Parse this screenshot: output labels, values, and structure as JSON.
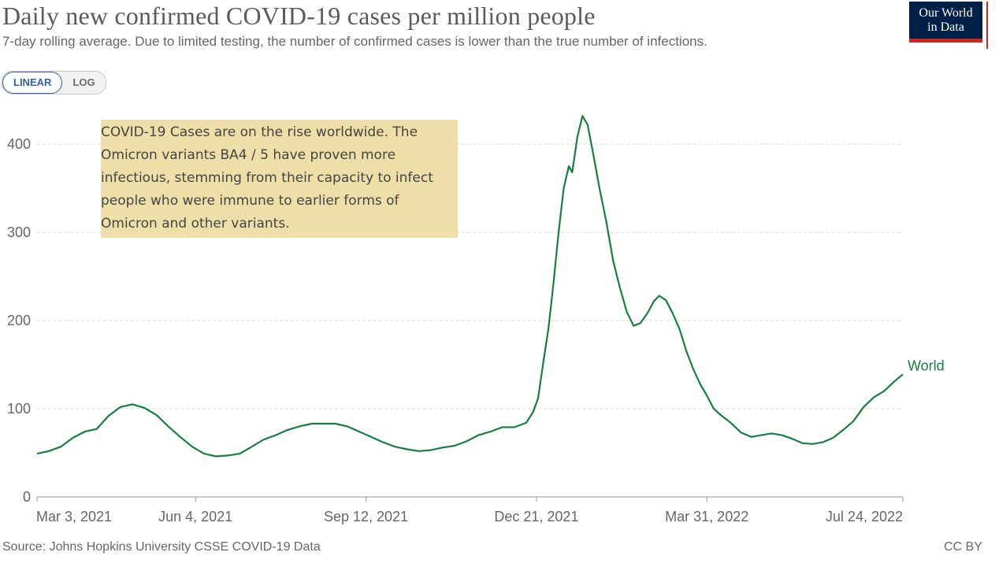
{
  "header": {
    "title": "Daily new confirmed COVID-19 cases per million people",
    "subtitle": "7-day rolling average. Due to limited testing, the number of confirmed cases is lower than the true number of infections.",
    "logo_line1": "Our World",
    "logo_line2": "in Data"
  },
  "toggle": {
    "linear_label": "LINEAR",
    "log_label": "LOG",
    "active": "LINEAR"
  },
  "annotation": {
    "text": "COVID-19 Cases are on the rise worldwide. The Omicron variants BA4 / 5 have proven more infectious, stemming from their capacity to infect people who were immune to earlier forms of Omicron and other variants."
  },
  "footer": {
    "source": "Source: Johns Hopkins University CSSE COVID-19 Data",
    "license": "CC BY"
  },
  "colors": {
    "line": "#15803d",
    "grid": "#d9d9d9",
    "axis": "#999999",
    "annotation_bg": "#eedfa8",
    "logo_bg": "#002147",
    "logo_accent": "#ce261e",
    "toggle_active": "#3360a9"
  },
  "chart_data": {
    "type": "line",
    "title": "Daily new confirmed COVID-19 cases per million people",
    "subtitle": "7-day rolling average. Due to limited testing, the number of confirmed cases is lower than the true number of infections.",
    "x_start": "2021-03-03",
    "x_end": "2022-07-24",
    "x_ticks": [
      {
        "date": "2021-03-03",
        "label": "Mar 3, 2021"
      },
      {
        "date": "2021-06-04",
        "label": "Jun 4, 2021"
      },
      {
        "date": "2021-09-12",
        "label": "Sep 12, 2021"
      },
      {
        "date": "2021-12-21",
        "label": "Dec 21, 2021"
      },
      {
        "date": "2022-03-31",
        "label": "Mar 31, 2022"
      },
      {
        "date": "2022-07-24",
        "label": "Jul 24, 2022"
      }
    ],
    "y_ticks": [
      0,
      100,
      200,
      300,
      400
    ],
    "ylim": [
      0,
      450
    ],
    "grid": true,
    "series": [
      {
        "name": "World",
        "points": [
          [
            "2021-03-03",
            49
          ],
          [
            "2021-03-10",
            52
          ],
          [
            "2021-03-17",
            57
          ],
          [
            "2021-03-24",
            67
          ],
          [
            "2021-03-31",
            74
          ],
          [
            "2021-04-07",
            77
          ],
          [
            "2021-04-14",
            92
          ],
          [
            "2021-04-21",
            102
          ],
          [
            "2021-04-28",
            105
          ],
          [
            "2021-05-05",
            101
          ],
          [
            "2021-05-12",
            93
          ],
          [
            "2021-05-19",
            80
          ],
          [
            "2021-05-26",
            68
          ],
          [
            "2021-06-02",
            57
          ],
          [
            "2021-06-09",
            49
          ],
          [
            "2021-06-16",
            46
          ],
          [
            "2021-06-23",
            47
          ],
          [
            "2021-06-30",
            49
          ],
          [
            "2021-07-07",
            57
          ],
          [
            "2021-07-14",
            65
          ],
          [
            "2021-07-21",
            70
          ],
          [
            "2021-07-28",
            76
          ],
          [
            "2021-08-04",
            80
          ],
          [
            "2021-08-11",
            83
          ],
          [
            "2021-08-18",
            83
          ],
          [
            "2021-08-25",
            83
          ],
          [
            "2021-09-01",
            80
          ],
          [
            "2021-09-08",
            74
          ],
          [
            "2021-09-15",
            68
          ],
          [
            "2021-09-22",
            62
          ],
          [
            "2021-09-29",
            57
          ],
          [
            "2021-10-06",
            54
          ],
          [
            "2021-10-13",
            52
          ],
          [
            "2021-10-20",
            53
          ],
          [
            "2021-10-27",
            56
          ],
          [
            "2021-11-03",
            58
          ],
          [
            "2021-11-10",
            63
          ],
          [
            "2021-11-17",
            70
          ],
          [
            "2021-11-24",
            74
          ],
          [
            "2021-12-01",
            79
          ],
          [
            "2021-12-08",
            79
          ],
          [
            "2021-12-15",
            84
          ],
          [
            "2021-12-19",
            96
          ],
          [
            "2021-12-22",
            112
          ],
          [
            "2021-12-25",
            152
          ],
          [
            "2021-12-28",
            190
          ],
          [
            "2021-12-31",
            242
          ],
          [
            "2022-01-03",
            300
          ],
          [
            "2022-01-06",
            350
          ],
          [
            "2022-01-09",
            375
          ],
          [
            "2022-01-11",
            368
          ],
          [
            "2022-01-14",
            408
          ],
          [
            "2022-01-17",
            432
          ],
          [
            "2022-01-20",
            422
          ],
          [
            "2022-01-23",
            392
          ],
          [
            "2022-01-27",
            350
          ],
          [
            "2022-01-31",
            312
          ],
          [
            "2022-02-04",
            268
          ],
          [
            "2022-02-08",
            237
          ],
          [
            "2022-02-12",
            210
          ],
          [
            "2022-02-16",
            194
          ],
          [
            "2022-02-20",
            197
          ],
          [
            "2022-02-24",
            208
          ],
          [
            "2022-02-28",
            222
          ],
          [
            "2022-03-03",
            228
          ],
          [
            "2022-03-07",
            223
          ],
          [
            "2022-03-11",
            208
          ],
          [
            "2022-03-15",
            190
          ],
          [
            "2022-03-19",
            165
          ],
          [
            "2022-03-23",
            145
          ],
          [
            "2022-03-27",
            128
          ],
          [
            "2022-03-31",
            115
          ],
          [
            "2022-04-04",
            100
          ],
          [
            "2022-04-08",
            93
          ],
          [
            "2022-04-14",
            84
          ],
          [
            "2022-04-20",
            73
          ],
          [
            "2022-04-26",
            68
          ],
          [
            "2022-05-02",
            70
          ],
          [
            "2022-05-08",
            72
          ],
          [
            "2022-05-14",
            70
          ],
          [
            "2022-05-20",
            66
          ],
          [
            "2022-05-26",
            61
          ],
          [
            "2022-06-01",
            60
          ],
          [
            "2022-06-07",
            62
          ],
          [
            "2022-06-13",
            67
          ],
          [
            "2022-06-19",
            76
          ],
          [
            "2022-06-25",
            86
          ],
          [
            "2022-07-01",
            102
          ],
          [
            "2022-07-07",
            113
          ],
          [
            "2022-07-13",
            120
          ],
          [
            "2022-07-19",
            131
          ],
          [
            "2022-07-24",
            139
          ]
        ]
      }
    ]
  }
}
